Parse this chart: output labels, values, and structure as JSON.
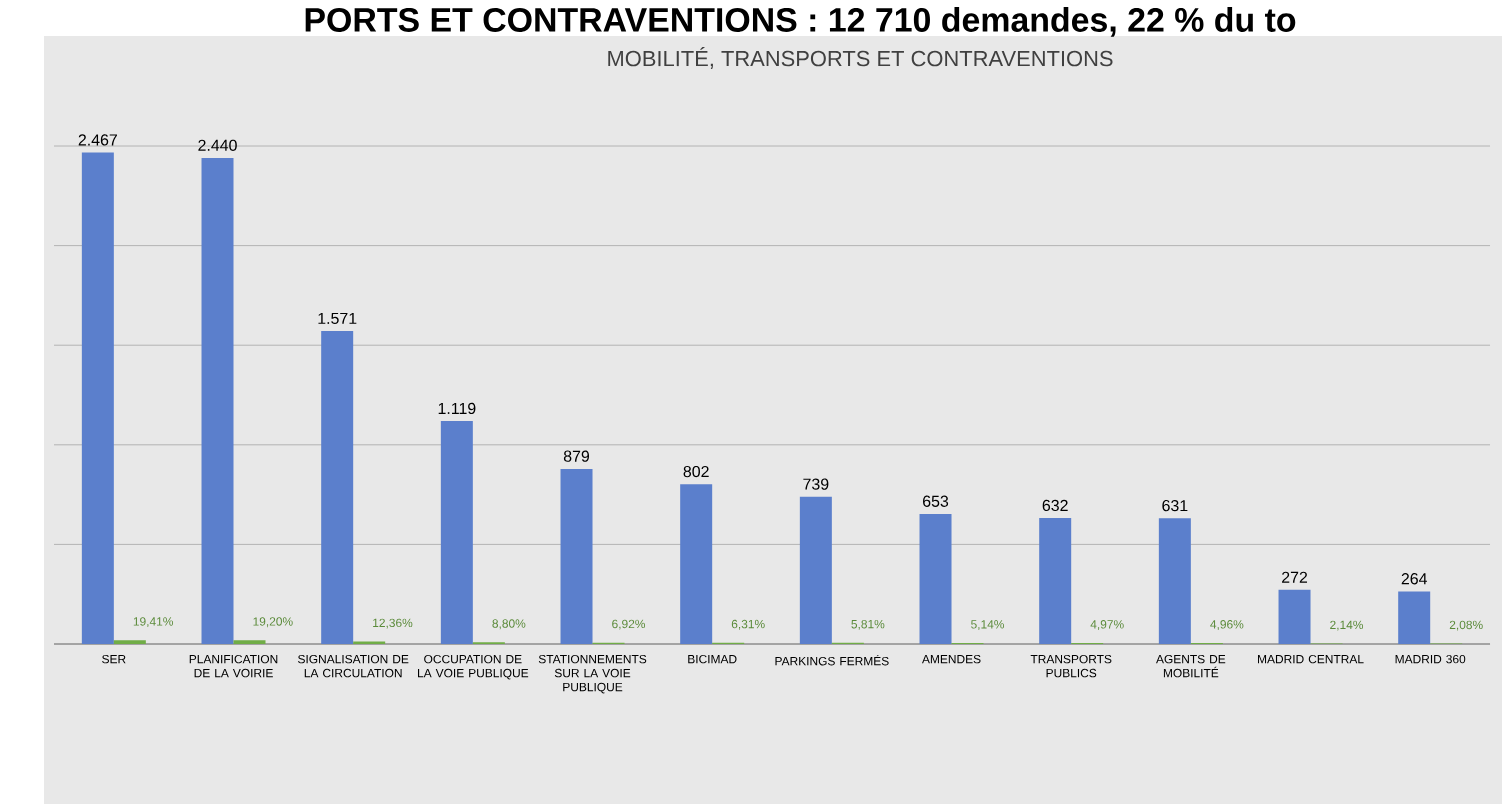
{
  "chart_data": {
    "type": "bar",
    "title": "MOBILITÉ, TRANSPORTS ET CONTRAVENTIONS",
    "annotations": [
      "PORTS ET CONTRAVENTIONS : 12 710 demandes, 22 % du to"
    ],
    "categories": [
      "SER",
      "PLANIFICATION DE LA VOIRIE",
      "SIGNALISATION DE LA CIRCULATION",
      "OCCUPATION DE LA VOIE PUBLIQUE",
      "STATIONNEMENTS SUR LA VOIE PUBLIQUE",
      "BICIMAD",
      "PARKINGS FERMÉS",
      "AMENDES",
      "TRANSPORTS PUBLICS",
      "AGENTS DE MOBILITÉ",
      "MADRID CENTRAL",
      "MADRID 360"
    ],
    "series": [
      {
        "color": "#5b7fcc",
        "values": [
          2467,
          2440,
          1571,
          1119,
          879,
          802,
          739,
          653,
          632,
          631,
          272,
          264
        ],
        "value_labels": [
          "2.467",
          "2.440",
          "1.571",
          "1.119",
          "879",
          "802",
          "739",
          "653",
          "632",
          "631",
          "272",
          "264"
        ]
      },
      {
        "color": "#70ad47",
        "values": [
          19.41,
          19.2,
          12.36,
          8.8,
          6.92,
          6.31,
          5.81,
          5.14,
          4.97,
          4.96,
          2.14,
          2.08
        ],
        "value_labels": [
          "19,41%",
          "19,20%",
          "12,36%",
          "8,80%",
          "6,92%",
          "6,31%",
          "5,81%",
          "5,14%",
          "4,97%",
          "4,96%",
          "2,14%",
          "2,08%"
        ]
      }
    ],
    "ylim": [
      0,
      2500
    ],
    "grid": "y",
    "tick_labels": "x"
  }
}
